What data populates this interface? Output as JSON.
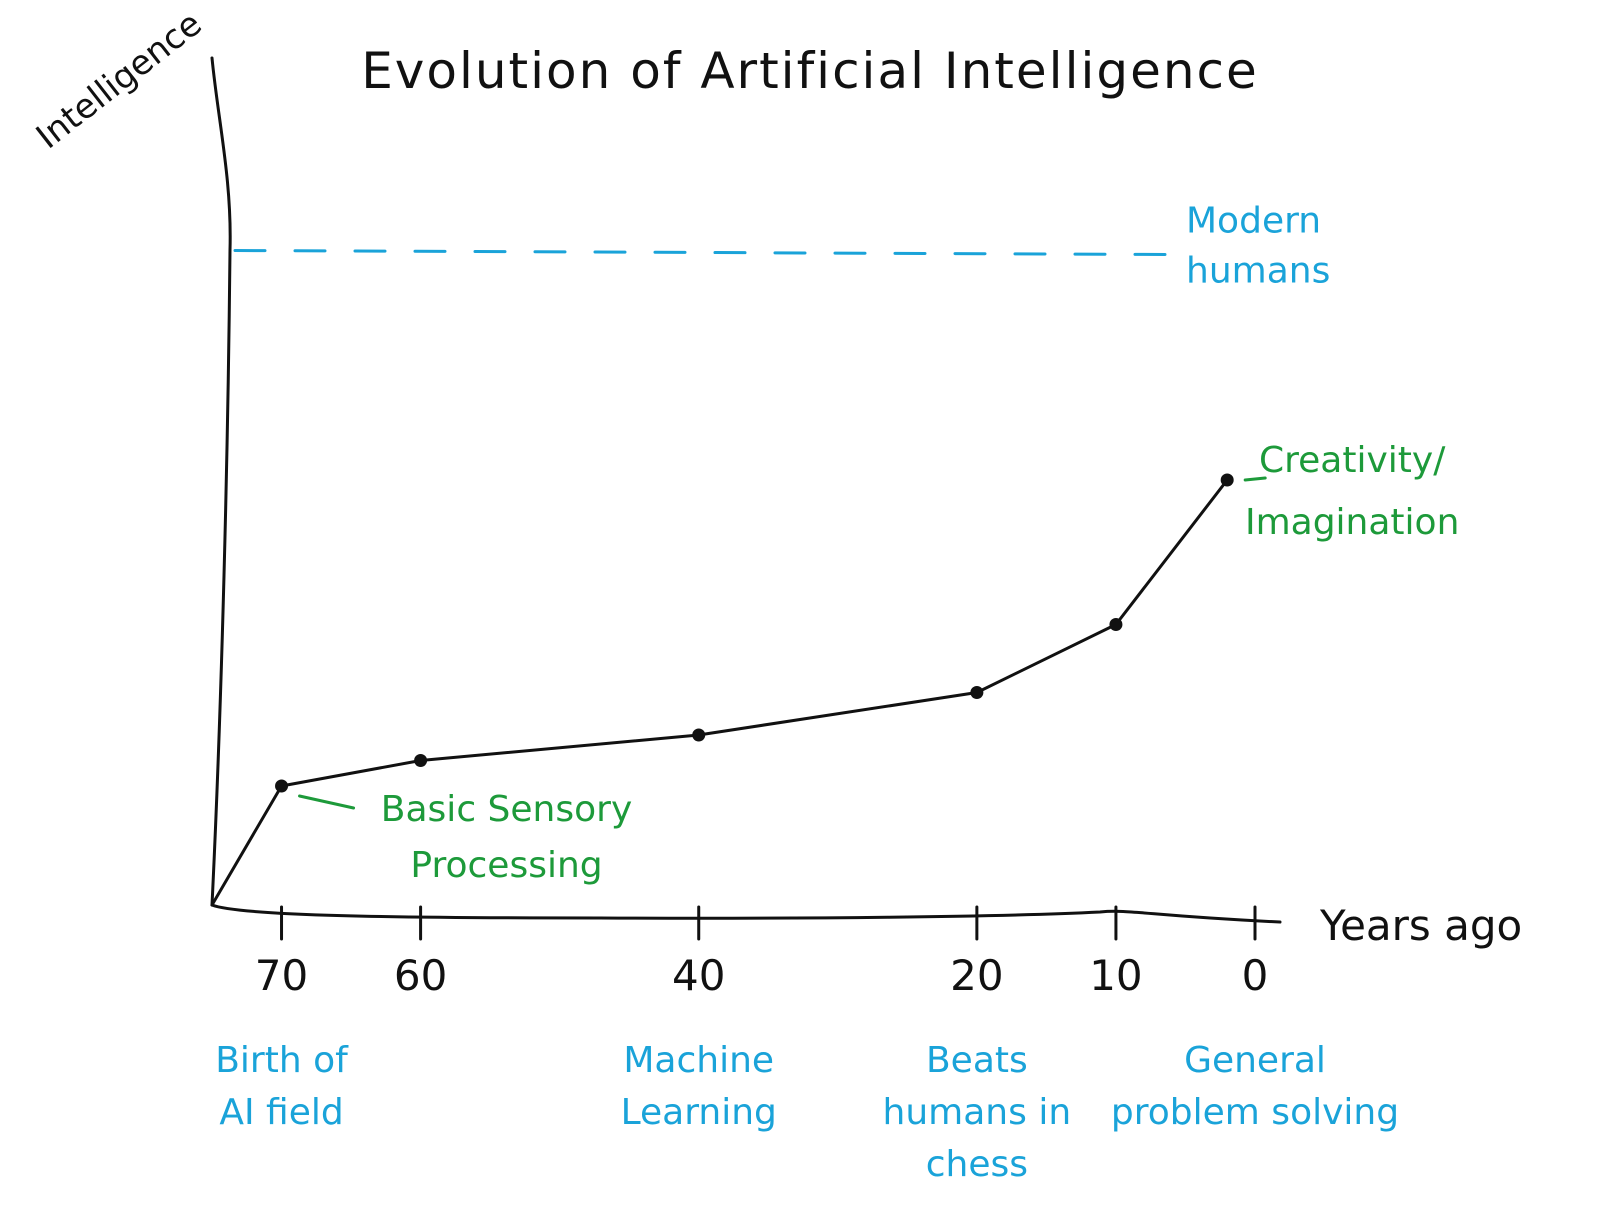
{
  "chart_data": {
    "type": "line",
    "title": "Evolution of Artificial Intelligence",
    "xlabel": "Years ago",
    "ylabel": "Intelligence",
    "x_reversed": true,
    "xlim": [
      75,
      -2
    ],
    "x_ticks": [
      70,
      60,
      40,
      20,
      10,
      0
    ],
    "grid": false,
    "series": [
      {
        "points": [
          {
            "x": 75,
            "y": 0
          },
          {
            "x": 70,
            "y": 14
          },
          {
            "x": 60,
            "y": 17
          },
          {
            "x": 40,
            "y": 20
          },
          {
            "x": 20,
            "y": 25
          },
          {
            "x": 10,
            "y": 33
          },
          {
            "x": 2,
            "y": 50
          }
        ]
      }
    ],
    "reference_line": {
      "y": 77,
      "label_lines": [
        "Modern",
        "humans"
      ],
      "color": "#1aa3d9",
      "style": "dashed"
    },
    "milestones": [
      {
        "x": 70,
        "label_lines": [
          "Birth of",
          "AI field"
        ],
        "color": "#1aa3d9"
      },
      {
        "x": 40,
        "label_lines": [
          "Machine",
          "Learning"
        ],
        "color": "#1aa3d9"
      },
      {
        "x": 20,
        "label_lines": [
          "Beats",
          "humans in",
          "chess"
        ],
        "color": "#1aa3d9"
      },
      {
        "x": 0,
        "label_lines": [
          "General",
          "problem solving"
        ],
        "color": "#1aa3d9"
      }
    ],
    "annotations": [
      {
        "x": 70,
        "y": 14,
        "label_lines": [
          "Basic Sensory",
          "Processing"
        ],
        "color": "#1d9a3a"
      },
      {
        "x": 2,
        "y": 50,
        "label_lines": [
          "Creativity/",
          "Imagination"
        ],
        "color": "#1d9a3a"
      }
    ],
    "colors": {
      "line": "#111111",
      "blue": "#1aa3d9",
      "green": "#1d9a3a"
    }
  }
}
